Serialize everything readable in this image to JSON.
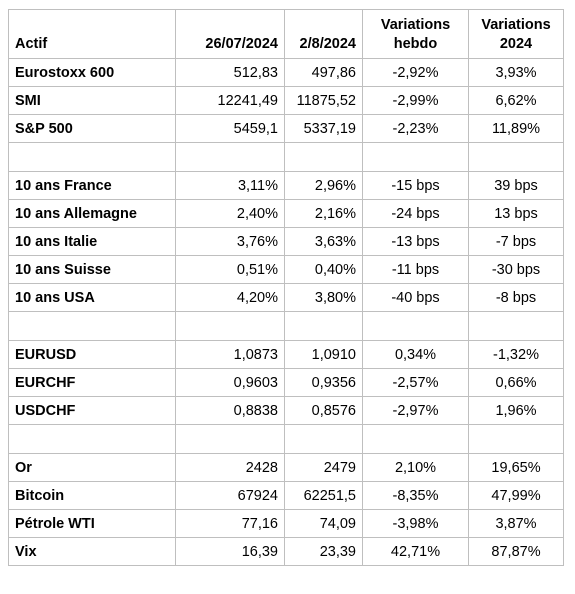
{
  "table": {
    "headers": {
      "asset": "Actif",
      "date1": "26/07/2024",
      "date2": "2/8/2024",
      "weekly": "Variations hebdo",
      "ytd": "Variations 2024"
    },
    "sections": [
      [
        {
          "asset": "Eurostoxx 600",
          "date1": "512,83",
          "date2": "497,86",
          "weekly": "-2,92%",
          "ytd": "3,93%"
        },
        {
          "asset": "SMI",
          "date1": "12241,49",
          "date2": "11875,52",
          "weekly": "-2,99%",
          "ytd": "6,62%"
        },
        {
          "asset": "S&P 500",
          "date1": "5459,1",
          "date2": "5337,19",
          "weekly": "-2,23%",
          "ytd": "11,89%"
        }
      ],
      [
        {
          "asset": "10 ans France",
          "date1": "3,11%",
          "date2": "2,96%",
          "weekly": "-15 bps",
          "ytd": "39 bps"
        },
        {
          "asset": "10 ans Allemagne",
          "date1": "2,40%",
          "date2": "2,16%",
          "weekly": "-24 bps",
          "ytd": "13 bps"
        },
        {
          "asset": "10 ans Italie",
          "date1": "3,76%",
          "date2": "3,63%",
          "weekly": "-13 bps",
          "ytd": "-7 bps"
        },
        {
          "asset": "10 ans Suisse",
          "date1": "0,51%",
          "date2": "0,40%",
          "weekly": "-11 bps",
          "ytd": "-30 bps"
        },
        {
          "asset": "10 ans USA",
          "date1": "4,20%",
          "date2": "3,80%",
          "weekly": "-40 bps",
          "ytd": "-8 bps"
        }
      ],
      [
        {
          "asset": "EURUSD",
          "date1": "1,0873",
          "date2": "1,0910",
          "weekly": "0,34%",
          "ytd": "-1,32%"
        },
        {
          "asset": "EURCHF",
          "date1": "0,9603",
          "date2": "0,9356",
          "weekly": "-2,57%",
          "ytd": "0,66%"
        },
        {
          "asset": "USDCHF",
          "date1": "0,8838",
          "date2": "0,8576",
          "weekly": "-2,97%",
          "ytd": "1,96%"
        }
      ],
      [
        {
          "asset": "Or",
          "date1": "2428",
          "date2": "2479",
          "weekly": "2,10%",
          "ytd": "19,65%"
        },
        {
          "asset": "Bitcoin",
          "date1": "67924",
          "date2": "62251,5",
          "weekly": "-8,35%",
          "ytd": "47,99%"
        },
        {
          "asset": "Pétrole WTI",
          "date1": "77,16",
          "date2": "74,09",
          "weekly": "-3,98%",
          "ytd": "3,87%"
        },
        {
          "asset": "Vix",
          "date1": "16,39",
          "date2": "23,39",
          "weekly": "42,71%",
          "ytd": "87,87%"
        }
      ]
    ]
  }
}
